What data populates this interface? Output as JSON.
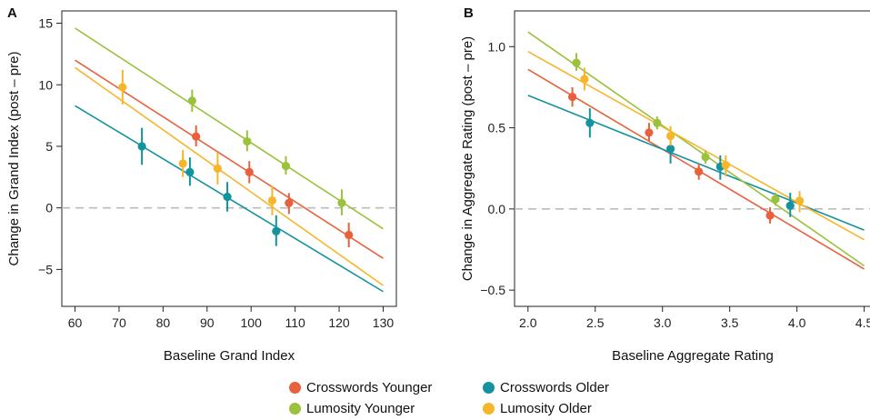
{
  "chart_data": [
    {
      "panel_label": "A",
      "type": "scatter",
      "xlabel": "Baseline Grand Index",
      "ylabel": "Change in Grand Index (post – pre)",
      "xlim": [
        57,
        133
      ],
      "ylim": [
        -8,
        16
      ],
      "xticks": [
        60,
        70,
        80,
        90,
        100,
        110,
        120,
        130
      ],
      "yticks": [
        -5,
        0,
        5,
        10,
        15
      ],
      "reference_line_y": 0,
      "series": [
        {
          "key": "cy",
          "name": "Crosswords Younger",
          "color": "#e9603c",
          "points": [
            {
              "x": 87.5,
              "y": 5.8,
              "lo": 5.0,
              "hi": 6.7
            },
            {
              "x": 99.6,
              "y": 2.9,
              "lo": 2.0,
              "hi": 3.8
            },
            {
              "x": 108.6,
              "y": 0.4,
              "lo": -0.5,
              "hi": 1.2
            },
            {
              "x": 122.2,
              "y": -2.2,
              "lo": -3.2,
              "hi": -1.2
            }
          ],
          "fit": [
            [
              60,
              12.0
            ],
            [
              130,
              -4.1
            ]
          ]
        },
        {
          "key": "co",
          "name": "Crosswords Older",
          "color": "#14939e",
          "points": [
            {
              "x": 75.2,
              "y": 5.0,
              "lo": 3.5,
              "hi": 6.5
            },
            {
              "x": 86.1,
              "y": 2.9,
              "lo": 1.8,
              "hi": 4.1
            },
            {
              "x": 94.6,
              "y": 0.9,
              "lo": -0.3,
              "hi": 2.1
            },
            {
              "x": 105.7,
              "y": -1.9,
              "lo": -3.1,
              "hi": -0.6
            }
          ],
          "fit": [
            [
              60,
              8.3
            ],
            [
              130,
              -6.8
            ]
          ]
        },
        {
          "key": "ly",
          "name": "Lumosity Younger",
          "color": "#9ac23c",
          "points": [
            {
              "x": 86.6,
              "y": 8.7,
              "lo": 7.8,
              "hi": 9.6
            },
            {
              "x": 99.1,
              "y": 5.4,
              "lo": 4.6,
              "hi": 6.3
            },
            {
              "x": 107.9,
              "y": 3.4,
              "lo": 2.7,
              "hi": 4.2
            },
            {
              "x": 120.6,
              "y": 0.4,
              "lo": -0.6,
              "hi": 1.5
            }
          ],
          "fit": [
            [
              60,
              14.6
            ],
            [
              130,
              -1.7
            ]
          ]
        },
        {
          "key": "lo",
          "name": "Lumosity Older",
          "color": "#f7b52a",
          "points": [
            {
              "x": 70.8,
              "y": 9.8,
              "lo": 8.4,
              "hi": 11.2
            },
            {
              "x": 84.5,
              "y": 3.6,
              "lo": 2.5,
              "hi": 4.7
            },
            {
              "x": 92.4,
              "y": 3.2,
              "lo": 1.9,
              "hi": 4.5
            },
            {
              "x": 104.8,
              "y": 0.6,
              "lo": -0.6,
              "hi": 1.8
            }
          ],
          "fit": [
            [
              60,
              11.4
            ],
            [
              130,
              -6.3
            ]
          ]
        }
      ]
    },
    {
      "panel_label": "B",
      "type": "scatter",
      "xlabel": "Baseline Aggregate Rating",
      "ylabel": "Change in Aggregate Rating (post – pre)",
      "xlim": [
        1.9,
        4.55
      ],
      "ylim": [
        -0.6,
        1.22
      ],
      "xticks": [
        2.0,
        2.5,
        3.0,
        3.5,
        4.0,
        4.5
      ],
      "yticks": [
        -0.5,
        0.0,
        0.5,
        1.0
      ],
      "reference_line_y": 0,
      "series": [
        {
          "key": "cy",
          "name": "Crosswords Younger",
          "color": "#e9603c",
          "points": [
            {
              "x": 2.33,
              "y": 0.69,
              "lo": 0.63,
              "hi": 0.75
            },
            {
              "x": 2.9,
              "y": 0.47,
              "lo": 0.42,
              "hi": 0.53
            },
            {
              "x": 3.27,
              "y": 0.23,
              "lo": 0.18,
              "hi": 0.28
            },
            {
              "x": 3.8,
              "y": -0.04,
              "lo": -0.09,
              "hi": 0.01
            }
          ],
          "fit": [
            [
              2.0,
              0.86
            ],
            [
              4.5,
              -0.37
            ]
          ]
        },
        {
          "key": "co",
          "name": "Crosswords Older",
          "color": "#14939e",
          "points": [
            {
              "x": 2.46,
              "y": 0.53,
              "lo": 0.44,
              "hi": 0.62
            },
            {
              "x": 3.06,
              "y": 0.37,
              "lo": 0.28,
              "hi": 0.45
            },
            {
              "x": 3.43,
              "y": 0.26,
              "lo": 0.18,
              "hi": 0.33
            },
            {
              "x": 3.95,
              "y": 0.02,
              "lo": -0.05,
              "hi": 0.1
            }
          ],
          "fit": [
            [
              2.0,
              0.7
            ],
            [
              4.5,
              -0.13
            ]
          ]
        },
        {
          "key": "ly",
          "name": "Lumosity Younger",
          "color": "#9ac23c",
          "points": [
            {
              "x": 2.36,
              "y": 0.9,
              "lo": 0.85,
              "hi": 0.96
            },
            {
              "x": 2.96,
              "y": 0.53,
              "lo": 0.49,
              "hi": 0.57
            },
            {
              "x": 3.32,
              "y": 0.32,
              "lo": 0.28,
              "hi": 0.36
            },
            {
              "x": 3.84,
              "y": 0.06,
              "lo": 0.02,
              "hi": 0.1
            }
          ],
          "fit": [
            [
              2.0,
              1.09
            ],
            [
              4.5,
              -0.35
            ]
          ]
        },
        {
          "key": "lo",
          "name": "Lumosity Older",
          "color": "#f7b52a",
          "points": [
            {
              "x": 2.42,
              "y": 0.8,
              "lo": 0.73,
              "hi": 0.87
            },
            {
              "x": 3.06,
              "y": 0.45,
              "lo": 0.39,
              "hi": 0.51
            },
            {
              "x": 3.47,
              "y": 0.27,
              "lo": 0.2,
              "hi": 0.33
            },
            {
              "x": 4.02,
              "y": 0.05,
              "lo": -0.02,
              "hi": 0.11
            }
          ],
          "fit": [
            [
              2.0,
              0.97
            ],
            [
              4.5,
              -0.19
            ]
          ]
        }
      ]
    }
  ],
  "legend": {
    "items": [
      {
        "label": "Crosswords Younger",
        "color": "#e9603c"
      },
      {
        "label": "Crosswords Older",
        "color": "#14939e"
      },
      {
        "label": "Lumosity Younger",
        "color": "#9ac23c"
      },
      {
        "label": "Lumosity Older",
        "color": "#f7b52a"
      }
    ]
  }
}
